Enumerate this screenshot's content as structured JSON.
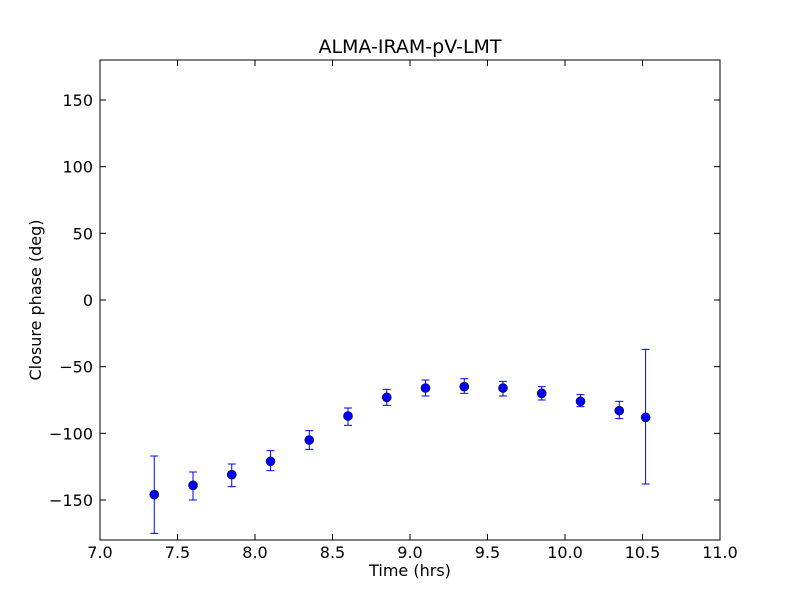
{
  "chart_data": {
    "type": "scatter",
    "title": "ALMA-IRAM-pV-LMT",
    "xlabel": "Time (hrs)",
    "ylabel": "Closure phase (deg)",
    "xlim": [
      7.0,
      11.0
    ],
    "ylim": [
      -180,
      180
    ],
    "xticks": [
      7.0,
      7.5,
      8.0,
      8.5,
      9.0,
      9.5,
      10.0,
      10.5,
      11.0
    ],
    "xtick_labels": [
      "7.0",
      "7.5",
      "8.0",
      "8.5",
      "9.0",
      "9.5",
      "10.0",
      "10.5",
      "11.0"
    ],
    "yticks": [
      -150,
      -100,
      -50,
      0,
      50,
      100,
      150
    ],
    "ytick_labels": [
      "−150",
      "−100",
      "−50",
      "0",
      "50",
      "100",
      "150"
    ],
    "grid": false,
    "marker_color": "#0000ff",
    "points": [
      {
        "x": 7.35,
        "y": -146,
        "yerr_low": -175,
        "yerr_high": -117
      },
      {
        "x": 7.6,
        "y": -139,
        "yerr_low": -150,
        "yerr_high": -129
      },
      {
        "x": 7.85,
        "y": -131,
        "yerr_low": -140,
        "yerr_high": -123
      },
      {
        "x": 8.1,
        "y": -121,
        "yerr_low": -128,
        "yerr_high": -113
      },
      {
        "x": 8.35,
        "y": -105,
        "yerr_low": -112,
        "yerr_high": -98
      },
      {
        "x": 8.6,
        "y": -87,
        "yerr_low": -94,
        "yerr_high": -81
      },
      {
        "x": 8.85,
        "y": -73,
        "yerr_low": -79,
        "yerr_high": -67
      },
      {
        "x": 9.1,
        "y": -66,
        "yerr_low": -72,
        "yerr_high": -60
      },
      {
        "x": 9.35,
        "y": -65,
        "yerr_low": -70,
        "yerr_high": -59
      },
      {
        "x": 9.6,
        "y": -66,
        "yerr_low": -72,
        "yerr_high": -61
      },
      {
        "x": 9.85,
        "y": -70,
        "yerr_low": -75,
        "yerr_high": -65
      },
      {
        "x": 10.1,
        "y": -76,
        "yerr_low": -80,
        "yerr_high": -71
      },
      {
        "x": 10.35,
        "y": -83,
        "yerr_low": -89,
        "yerr_high": -76
      },
      {
        "x": 10.52,
        "y": -88,
        "yerr_low": -138,
        "yerr_high": -37
      }
    ]
  }
}
